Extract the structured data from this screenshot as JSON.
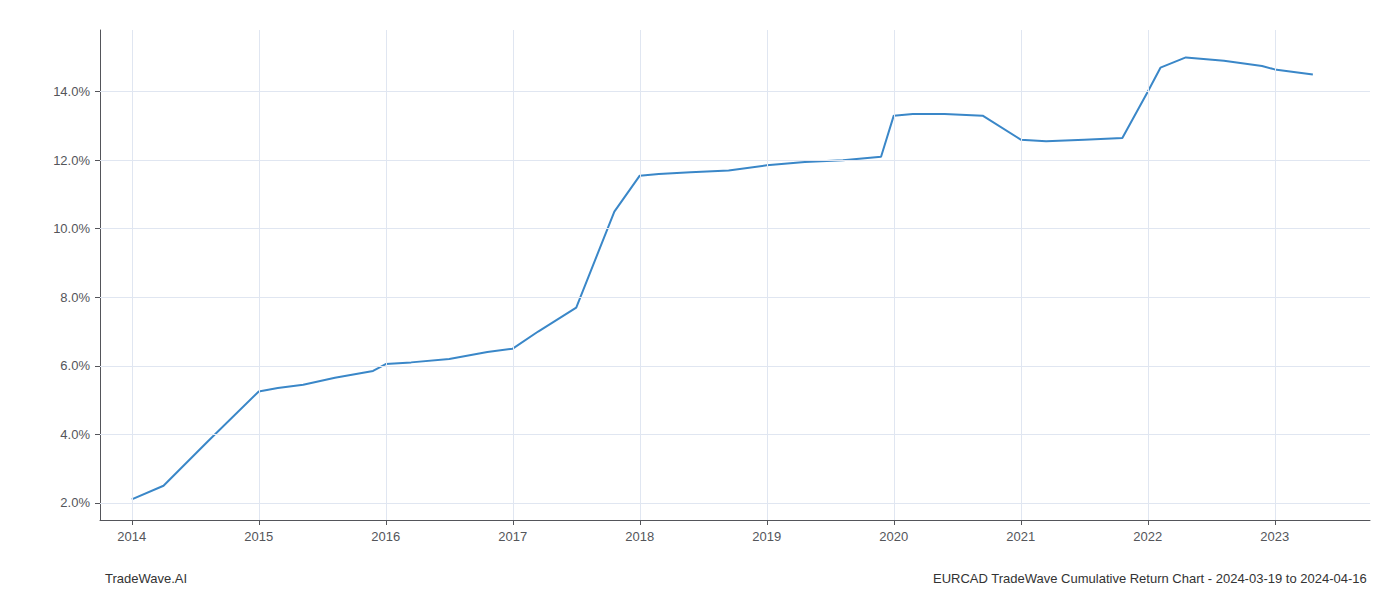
{
  "chart_data": {
    "type": "line",
    "title": "EURCAD TradeWave Cumulative Return Chart - 2024-03-19 to 2024-04-16",
    "annotations": [
      "TradeWave.AI"
    ],
    "x": [
      2014.0,
      2014.25,
      2014.6,
      2015.0,
      2015.15,
      2015.35,
      2015.6,
      2015.9,
      2016.0,
      2016.2,
      2016.5,
      2016.8,
      2017.0,
      2017.2,
      2017.5,
      2017.8,
      2018.0,
      2018.15,
      2018.4,
      2018.7,
      2019.0,
      2019.3,
      2019.6,
      2019.9,
      2020.0,
      2020.15,
      2020.4,
      2020.7,
      2021.0,
      2021.2,
      2021.5,
      2021.8,
      2022.0,
      2022.1,
      2022.3,
      2022.6,
      2022.9,
      2023.0,
      2023.3
    ],
    "values": [
      2.1,
      2.5,
      3.8,
      5.25,
      5.35,
      5.45,
      5.65,
      5.85,
      6.05,
      6.1,
      6.2,
      6.4,
      6.5,
      7.0,
      7.7,
      10.5,
      11.55,
      11.6,
      11.65,
      11.7,
      11.85,
      11.95,
      12.0,
      12.1,
      13.3,
      13.35,
      13.35,
      13.3,
      12.6,
      12.55,
      12.6,
      12.65,
      14.0,
      14.7,
      15.0,
      14.9,
      14.75,
      14.65,
      14.5
    ],
    "color": "#3a87c8",
    "xlim": [
      2013.75,
      2023.75
    ],
    "xticks": [
      2014,
      2015,
      2016,
      2017,
      2018,
      2019,
      2020,
      2021,
      2022,
      2023
    ],
    "ylim": [
      1.5,
      15.8
    ],
    "yticks": [
      {
        "value": 2.0,
        "label": "2.0%"
      },
      {
        "value": 4.0,
        "label": "4.0%"
      },
      {
        "value": 6.0,
        "label": "6.0%"
      },
      {
        "value": 8.0,
        "label": "8.0%"
      },
      {
        "value": 10.0,
        "label": "10.0%"
      },
      {
        "value": 12.0,
        "label": "12.0%"
      },
      {
        "value": 14.0,
        "label": "14.0%"
      }
    ],
    "grid": true
  }
}
